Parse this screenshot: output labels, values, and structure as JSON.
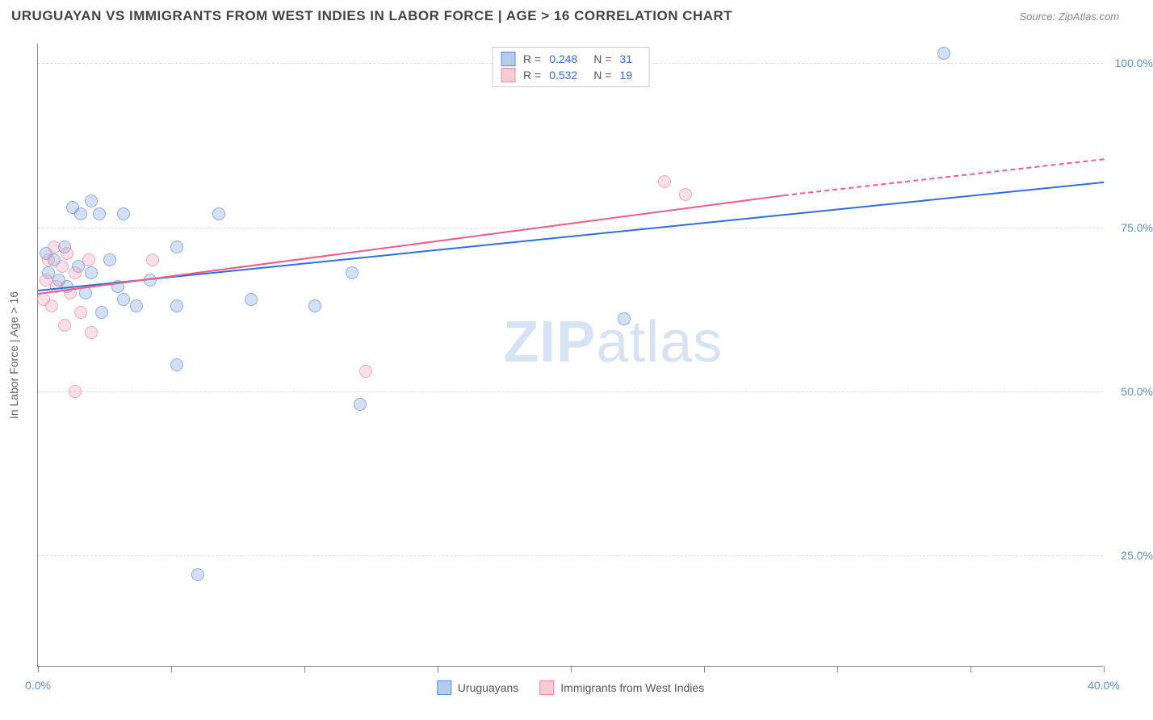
{
  "header": {
    "title": "URUGUAYAN VS IMMIGRANTS FROM WEST INDIES IN LABOR FORCE | AGE > 16 CORRELATION CHART",
    "source": "Source: ZipAtlas.com"
  },
  "watermark": {
    "bold": "ZIP",
    "rest": "atlas"
  },
  "chart": {
    "type": "scatter",
    "xlim": [
      0,
      40
    ],
    "ylim": [
      8,
      103
    ],
    "xticks": [
      0,
      5,
      10,
      15,
      20,
      25,
      30,
      35,
      40
    ],
    "xtick_labels": {
      "0": "0.0%",
      "40": "40.0%"
    },
    "yticks": [
      25,
      50,
      75,
      100
    ],
    "ytick_labels": [
      "25.0%",
      "50.0%",
      "75.0%",
      "100.0%"
    ],
    "ylabel": "In Labor Force | Age > 16",
    "background_color": "#ffffff",
    "grid_color": "#dddddd",
    "axis_color": "#888888",
    "point_radius": 8,
    "series": [
      {
        "name": "Uruguayans",
        "color_fill": "rgba(120,160,220,0.45)",
        "color_stroke": "#5b8fd6",
        "r": "0.248",
        "n": "31",
        "trend": {
          "x1": 0,
          "y1": 65.5,
          "x2": 40,
          "y2": 82.0,
          "color": "#2f6fd6"
        },
        "points": [
          [
            0.3,
            71
          ],
          [
            0.4,
            68
          ],
          [
            0.6,
            70
          ],
          [
            0.8,
            67
          ],
          [
            1.0,
            72
          ],
          [
            1.1,
            66
          ],
          [
            1.3,
            78
          ],
          [
            1.5,
            69
          ],
          [
            1.6,
            77
          ],
          [
            1.8,
            65
          ],
          [
            2.0,
            79
          ],
          [
            2.0,
            68
          ],
          [
            2.3,
            77
          ],
          [
            2.4,
            62
          ],
          [
            2.7,
            70
          ],
          [
            3.0,
            66
          ],
          [
            3.2,
            77
          ],
          [
            3.2,
            64
          ],
          [
            3.7,
            63
          ],
          [
            4.2,
            67
          ],
          [
            5.2,
            63
          ],
          [
            5.2,
            72
          ],
          [
            5.2,
            54
          ],
          [
            6.0,
            22
          ],
          [
            6.8,
            77
          ],
          [
            8.0,
            64
          ],
          [
            10.4,
            63
          ],
          [
            11.8,
            68
          ],
          [
            12.1,
            48
          ],
          [
            22.0,
            61
          ],
          [
            34.0,
            101.5
          ]
        ]
      },
      {
        "name": "Immigrants from West Indies",
        "color_fill": "rgba(240,150,170,0.40)",
        "color_stroke": "#e68aa3",
        "r": "0.532",
        "n": "19",
        "trend": {
          "x1": 0,
          "y1": 65.0,
          "x2": 28,
          "y2": 80.0,
          "x3": 40,
          "y3": 85.5,
          "color": "#e85f8a"
        },
        "points": [
          [
            0.2,
            64
          ],
          [
            0.3,
            67
          ],
          [
            0.4,
            70
          ],
          [
            0.5,
            63
          ],
          [
            0.6,
            72
          ],
          [
            0.7,
            66
          ],
          [
            0.9,
            69
          ],
          [
            1.0,
            60
          ],
          [
            1.1,
            71
          ],
          [
            1.2,
            65
          ],
          [
            1.4,
            68
          ],
          [
            1.6,
            62
          ],
          [
            1.9,
            70
          ],
          [
            2.0,
            59
          ],
          [
            1.4,
            50
          ],
          [
            4.3,
            70
          ],
          [
            12.3,
            53
          ],
          [
            23.5,
            82
          ],
          [
            24.3,
            80
          ]
        ]
      }
    ],
    "legend_bottom": [
      {
        "series": 0,
        "label": "Uruguayans"
      },
      {
        "series": 1,
        "label": "Immigrants from West Indies"
      }
    ],
    "legend_top_labels": {
      "r": "R =",
      "n": "N ="
    }
  }
}
